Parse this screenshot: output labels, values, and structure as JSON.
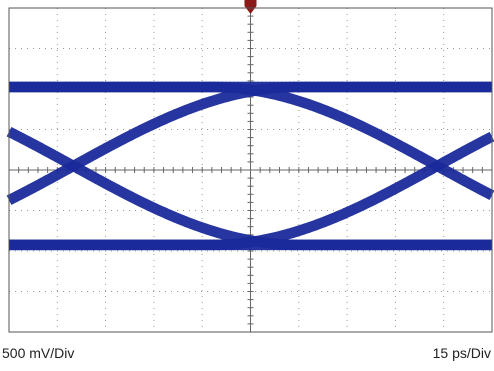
{
  "captions": {
    "vertical_scale": "500 mV/Div",
    "horizontal_scale": "15 ps/Div"
  },
  "colors": {
    "trace": "#1a2a9a",
    "grid": "#9a9a9a",
    "frame": "#555555",
    "trigger_marker": "#8b1a1a",
    "background": "#ffffff"
  },
  "chart_data": {
    "type": "eye-diagram",
    "title": "",
    "xlabel": "",
    "ylabel": "",
    "x_divisions": 10,
    "y_divisions": 8,
    "x_units_per_div": "15 ps",
    "y_units_per_div": "500 mV",
    "xlim_ps": [
      -75,
      75
    ],
    "ylim_mV": [
      -2000,
      2000
    ],
    "grid": "dotted",
    "trigger_marker": "top-center",
    "levels_mV": {
      "high": 1025,
      "low": -925
    },
    "crossings": [
      {
        "time_ps": -55,
        "level_mV": 50
      },
      {
        "time_ps": 58,
        "level_mV": 50
      }
    ],
    "trace_band_mV": 130
  }
}
